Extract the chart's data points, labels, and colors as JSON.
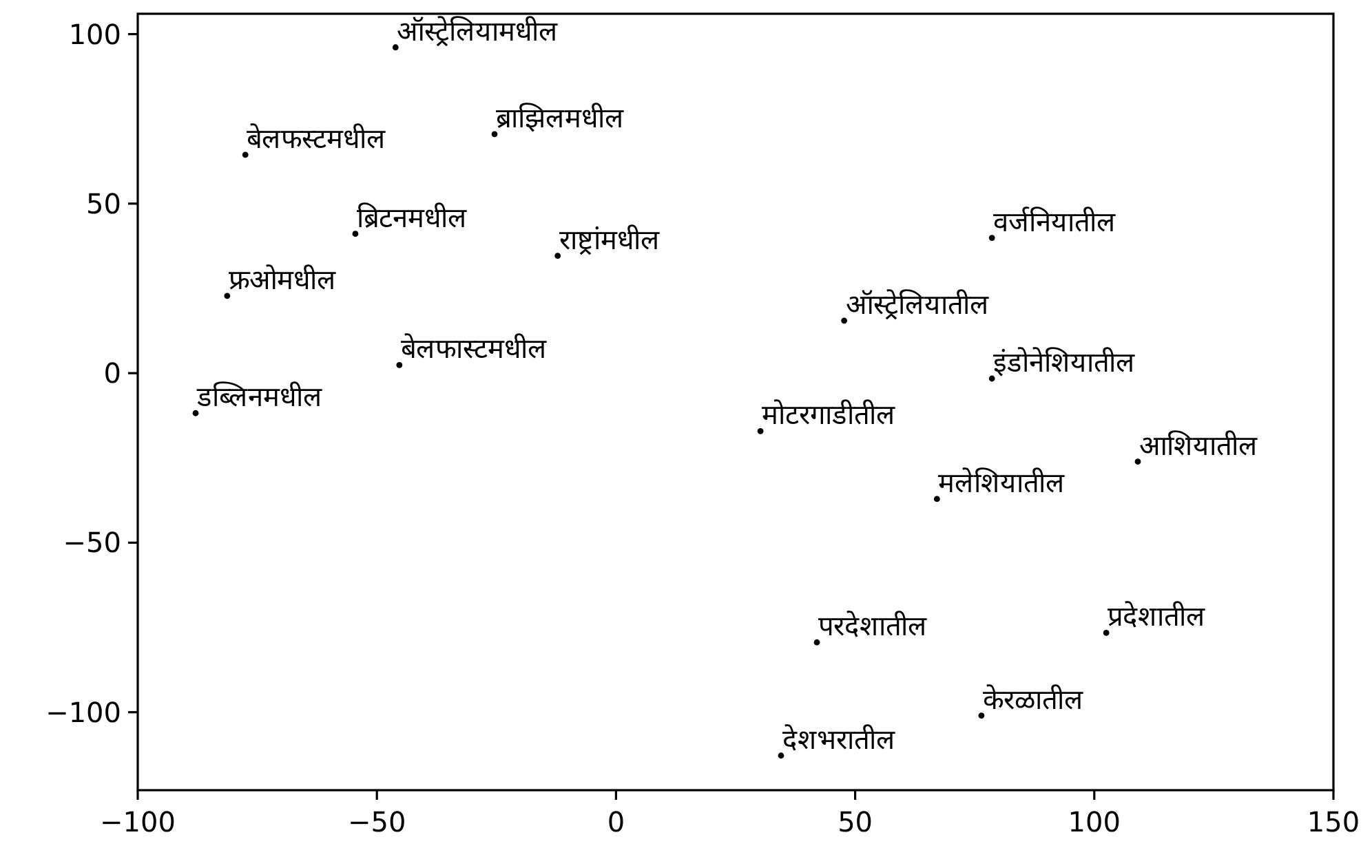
{
  "chart_data": {
    "type": "scatter",
    "color": "#000000",
    "marker": "circle",
    "grid": false,
    "xlim": [
      -100,
      150
    ],
    "ylim": [
      -123,
      106
    ],
    "xticks": [
      {
        "value": -100,
        "label": "−100"
      },
      {
        "value": -50,
        "label": "−50"
      },
      0,
      50,
      100,
      150
    ],
    "yticks": [
      {
        "value": -100,
        "label": "−100"
      },
      {
        "value": -50,
        "label": "−50"
      },
      0,
      50,
      100
    ],
    "x": [
      -46.1,
      -77.5,
      -25.4,
      -54.5,
      -12.2,
      -81.3,
      -45.3,
      -87.9,
      78.6,
      47.7,
      78.6,
      30.2,
      109.1,
      67.1,
      42.0,
      102.5,
      76.4,
      34.5
    ],
    "values": [
      96.1,
      64.4,
      70.5,
      41.1,
      34.6,
      22.8,
      2.4,
      -11.8,
      39.9,
      15.5,
      -1.6,
      -17.1,
      -26.1,
      -37.1,
      -79.4,
      -76.6,
      -101.0,
      -112.8
    ],
    "annotations": [
      {
        "text": "ऑस्ट्रेलियामधील",
        "x": -46.1,
        "y": 96.1
      },
      {
        "text": "बेलफस्टमधील",
        "x": -77.5,
        "y": 64.4
      },
      {
        "text": "ब्राझिलमधील",
        "x": -25.4,
        "y": 70.5
      },
      {
        "text": "ब्रिटनमधील",
        "x": -54.5,
        "y": 41.1
      },
      {
        "text": "राष्ट्रांमधील",
        "x": -12.2,
        "y": 34.6
      },
      {
        "text": "फ्रओमधील",
        "x": -81.3,
        "y": 22.8
      },
      {
        "text": "बेलफास्टमधील",
        "x": -45.3,
        "y": 2.4
      },
      {
        "text": "डब्लिनमधील",
        "x": -87.9,
        "y": -11.8
      },
      {
        "text": "वर्जनियातील",
        "x": 78.6,
        "y": 39.9
      },
      {
        "text": "ऑस्ट्रेलियातील",
        "x": 47.7,
        "y": 15.5
      },
      {
        "text": "इंडोनेशियातील",
        "x": 78.6,
        "y": -1.6
      },
      {
        "text": "मोटरगाडीतील",
        "x": 30.2,
        "y": -17.1
      },
      {
        "text": "आशियातील",
        "x": 109.1,
        "y": -26.1
      },
      {
        "text": "मलेशियातील",
        "x": 67.1,
        "y": -37.1
      },
      {
        "text": "परदेशातील",
        "x": 42.0,
        "y": -79.4
      },
      {
        "text": "प्रदेशातील",
        "x": 102.5,
        "y": -76.6
      },
      {
        "text": "केरळातील",
        "x": 76.4,
        "y": -101.0
      },
      {
        "text": "देशभरातील",
        "x": 34.5,
        "y": -112.8
      }
    ]
  }
}
